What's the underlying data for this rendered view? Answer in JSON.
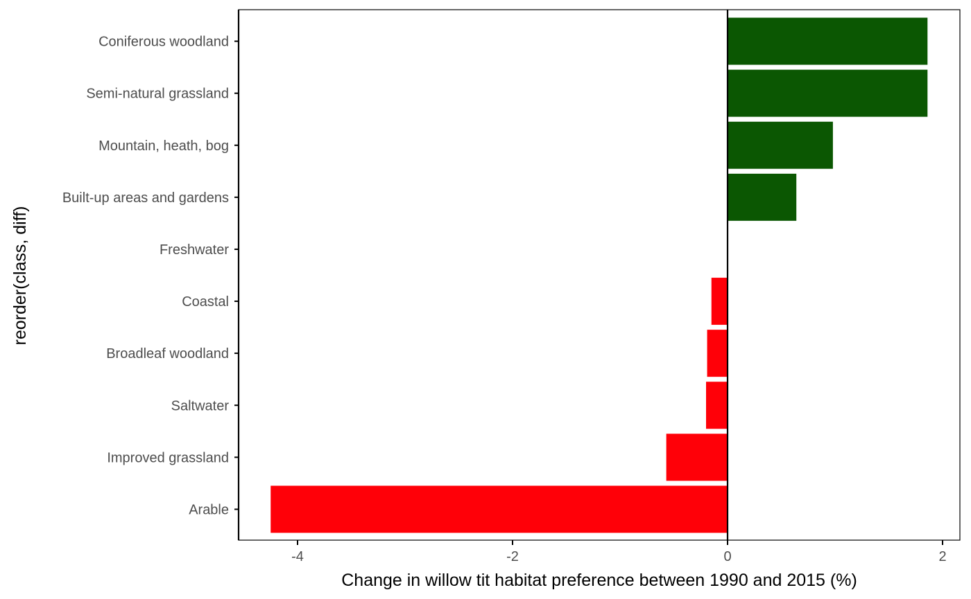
{
  "chart_data": {
    "type": "bar",
    "orientation": "horizontal",
    "xlabel": "Change in willow tit habitat preference between 1990 and 2015 (%)",
    "ylabel": "reorder(class, diff)",
    "xlim": [
      -4.5,
      2.15
    ],
    "xticks": [
      -4,
      -2,
      0,
      2
    ],
    "xtick_labels": [
      "-4",
      "-2",
      "0",
      "2"
    ],
    "grid": false,
    "categories": [
      "Coniferous woodland",
      "Semi-natural grassland",
      "Mountain, heath, bog",
      "Built-up areas and gardens",
      "Freshwater",
      "Coastal",
      "Broadleaf woodland",
      "Saltwater",
      "Improved grassland",
      "Arable"
    ],
    "values": [
      1.86,
      1.86,
      0.98,
      0.64,
      0.0,
      -0.15,
      -0.19,
      -0.2,
      -0.57,
      -4.25
    ],
    "colors": {
      "positive": "#0b5702",
      "negative": "#ff0008",
      "zero_line": "#000000",
      "axis": "#000000",
      "tick_label": "#4d4d4d",
      "axis_title": "#000000"
    }
  }
}
